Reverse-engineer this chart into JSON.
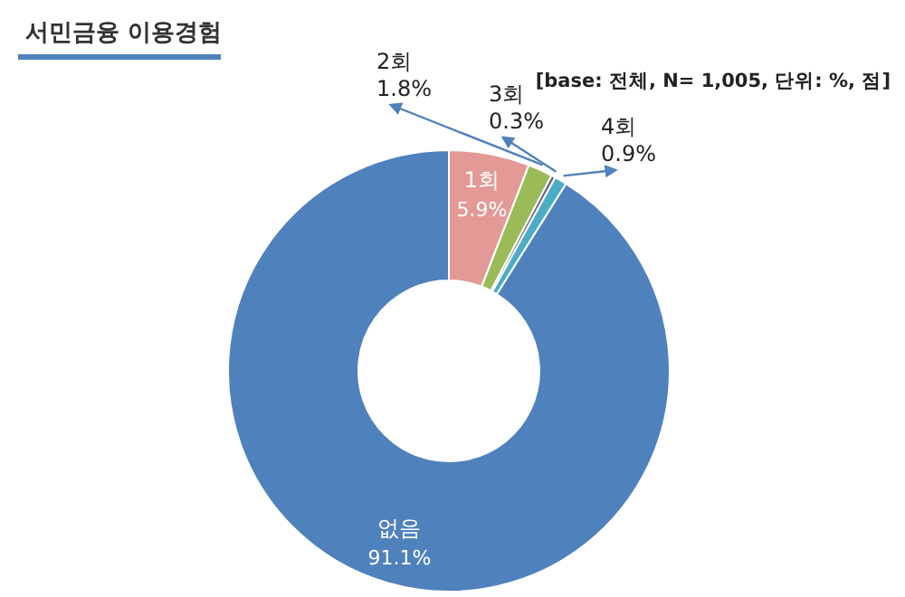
{
  "chart_data": {
    "type": "donut",
    "title": "서민금융 이용경험",
    "annotations": [
      "[base: 전체, N= 1,005, 단위: %, 점]"
    ],
    "categories": [
      "1회",
      "2회",
      "3회",
      "4회",
      "없음"
    ],
    "values": [
      5.9,
      1.8,
      0.3,
      0.9,
      91.1
    ],
    "value_labels": [
      "5.9%",
      "1.8%",
      "0.3%",
      "0.9%",
      "91.1%"
    ],
    "colors": [
      "#e39a96",
      "#9bbb59",
      "#6f5a8c",
      "#4bacc6",
      "#4f81bd"
    ]
  }
}
